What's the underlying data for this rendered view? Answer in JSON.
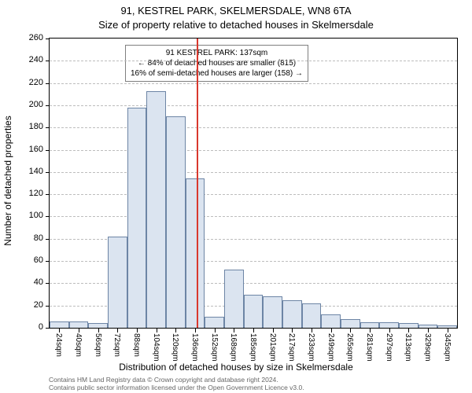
{
  "title_line1": "91, KESTREL PARK, SKELMERSDALE, WN8 6TA",
  "title_line2": "Size of property relative to detached houses in Skelmersdale",
  "y_axis_label": "Number of detached properties",
  "x_axis_label": "Distribution of detached houses by size in Skelmersdale",
  "footnote1": "Contains HM Land Registry data © Crown copyright and database right 2024.",
  "footnote2": "Contains public sector information licensed under the Open Government Licence v3.0.",
  "annotation": {
    "line1": "91 KESTREL PARK: 137sqm",
    "line2": "← 84% of detached houses are smaller (815)",
    "line3": "16% of semi-detached houses are larger (158) →"
  },
  "chart": {
    "type": "histogram",
    "background_color": "#ffffff",
    "grid_color": "#bdbdbd",
    "axis_color": "#000000",
    "bar_fill": "#dbe4f0",
    "bar_stroke": "#6d85a5",
    "marker_color": "#d9382e",
    "marker_value_sqm": 137,
    "x_min_sqm": 16,
    "x_max_sqm": 352,
    "y_min": 0,
    "y_max": 260,
    "y_tick_step": 20,
    "bin_width_sqm": 16,
    "x_tick_labels": [
      "24sqm",
      "40sqm",
      "56sqm",
      "72sqm",
      "88sqm",
      "104sqm",
      "120sqm",
      "136sqm",
      "152sqm",
      "168sqm",
      "185sqm",
      "201sqm",
      "217sqm",
      "233sqm",
      "249sqm",
      "265sqm",
      "281sqm",
      "297sqm",
      "313sqm",
      "329sqm",
      "345sqm"
    ],
    "values": [
      6,
      6,
      4,
      82,
      198,
      213,
      190,
      134,
      10,
      52,
      30,
      28,
      25,
      22,
      12,
      8,
      5,
      5,
      4,
      3,
      2
    ],
    "label_fontsize": 12,
    "tick_fontsize": 11,
    "xtick_fontsize": 10,
    "title_fontsize": 13
  }
}
